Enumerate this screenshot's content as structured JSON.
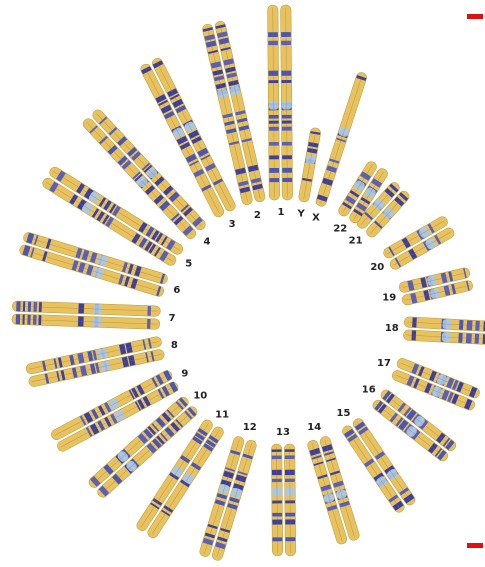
{
  "chromosomes": [
    {
      "label": "1"
    },
    {
      "label": "2"
    },
    {
      "label": "3"
    },
    {
      "label": "4"
    },
    {
      "label": "5"
    },
    {
      "label": "6"
    },
    {
      "label": "7"
    },
    {
      "label": "8"
    },
    {
      "label": "9"
    },
    {
      "label": "10"
    },
    {
      "label": "11"
    },
    {
      "label": "12"
    },
    {
      "label": "13"
    },
    {
      "label": "14"
    },
    {
      "label": "15"
    },
    {
      "label": "16"
    },
    {
      "label": "17"
    },
    {
      "label": "18"
    },
    {
      "label": "19"
    },
    {
      "label": "20"
    },
    {
      "label": "21"
    },
    {
      "label": "22"
    },
    {
      "label": "X"
    },
    {
      "label": "Y"
    }
  ]
}
